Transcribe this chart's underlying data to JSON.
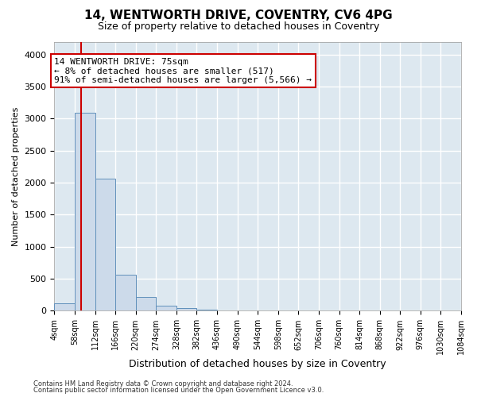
{
  "title": "14, WENTWORTH DRIVE, COVENTRY, CV6 4PG",
  "subtitle": "Size of property relative to detached houses in Coventry",
  "xlabel": "Distribution of detached houses by size in Coventry",
  "ylabel": "Number of detached properties",
  "footnote1": "Contains HM Land Registry data © Crown copyright and database right 2024.",
  "footnote2": "Contains public sector information licensed under the Open Government Licence v3.0.",
  "bin_edges": [
    4,
    58,
    112,
    166,
    220,
    274,
    328,
    382,
    436,
    490,
    544,
    598,
    652,
    706,
    760,
    814,
    868,
    922,
    976,
    1030,
    1084
  ],
  "bar_heights": [
    115,
    3090,
    2060,
    565,
    215,
    85,
    45,
    18,
    8,
    5,
    3,
    2,
    1,
    1,
    1,
    0,
    0,
    0,
    0,
    0
  ],
  "bar_color": "#ccdaea",
  "bar_edge_color": "#6090bb",
  "property_size": 75,
  "property_line_color": "#cc0000",
  "annotation_line1": "14 WENTWORTH DRIVE: 75sqm",
  "annotation_line2": "← 8% of detached houses are smaller (517)",
  "annotation_line3": "91% of semi-detached houses are larger (5,566) →",
  "annotation_box_color": "#cc0000",
  "ylim": [
    0,
    4200
  ],
  "yticks": [
    0,
    500,
    1000,
    1500,
    2000,
    2500,
    3000,
    3500,
    4000
  ],
  "bg_color": "#dde8f0",
  "grid_color": "#ffffff",
  "title_fontsize": 11,
  "subtitle_fontsize": 9,
  "ylabel_fontsize": 8,
  "xlabel_fontsize": 9,
  "tick_fontsize": 7,
  "annotation_fontsize": 8
}
